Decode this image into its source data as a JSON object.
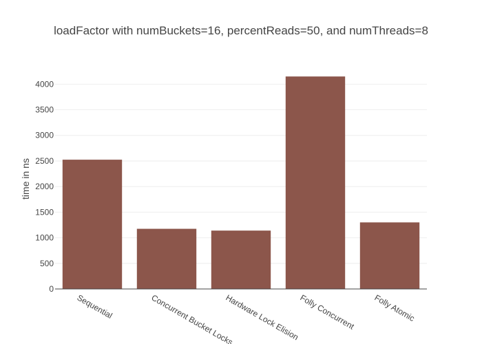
{
  "chart_data": {
    "type": "bar",
    "title": "loadFactor with numBuckets=16, percentReads=50, and numThreads=8",
    "xlabel": "",
    "ylabel": "time in ns",
    "categories": [
      "Sequential",
      "Concurrent Bucket Locks",
      "Hardware Lock Elision",
      "Folly Concurrent",
      "Folly Atomic"
    ],
    "values": [
      2525,
      1175,
      1140,
      4150,
      1300
    ],
    "ylim": [
      0,
      4300
    ],
    "yticks": [
      0,
      500,
      1000,
      1500,
      2000,
      2500,
      3000,
      3500,
      4000
    ],
    "grid": true,
    "bar_color": "#8c564b"
  }
}
